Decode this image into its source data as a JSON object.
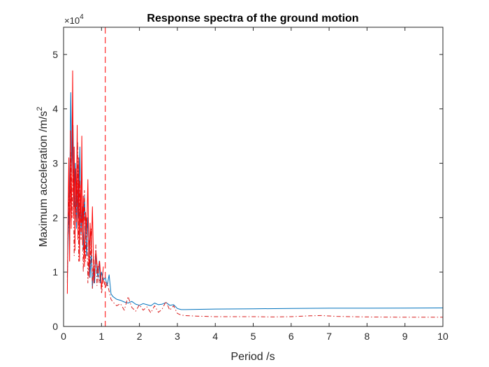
{
  "chart_data": {
    "type": "line",
    "title": "Response spectra of the ground motion",
    "xlabel": "Period /s",
    "ylabel": "Maximum acceleration /m/s",
    "ylabel_superscript": "2",
    "y_exponent_prefix": "×10",
    "y_exponent_power": "4",
    "xlim": [
      0,
      10
    ],
    "ylim": [
      0,
      55000
    ],
    "xticks": [
      0,
      1,
      2,
      3,
      4,
      5,
      6,
      7,
      8,
      9,
      10
    ],
    "yticks": [
      0,
      10000,
      20000,
      30000,
      40000,
      50000
    ],
    "ytick_labels": [
      "0",
      "1",
      "2",
      "3",
      "4",
      "5"
    ],
    "grid": false,
    "box": true,
    "vertical_marker": {
      "x": 1.1,
      "style": "dashed",
      "color": "#ff0000"
    },
    "series": [
      {
        "style": "solid",
        "color": "#0072bd",
        "x": [
          0.1,
          0.13,
          0.16,
          0.19,
          0.22,
          0.25,
          0.28,
          0.31,
          0.34,
          0.37,
          0.4,
          0.43,
          0.46,
          0.49,
          0.52,
          0.55,
          0.58,
          0.61,
          0.64,
          0.67,
          0.7,
          0.73,
          0.76,
          0.79,
          0.82,
          0.85,
          0.88,
          0.91,
          0.94,
          0.97,
          1.0,
          1.05,
          1.1,
          1.15,
          1.2,
          1.25,
          1.3,
          1.4,
          1.5,
          1.6,
          1.7,
          1.8,
          1.9,
          2.0,
          2.1,
          2.2,
          2.3,
          2.4,
          2.5,
          2.6,
          2.7,
          2.8,
          2.9,
          3.0,
          3.1,
          3.2,
          4.0,
          5.0,
          6.0,
          7.0,
          8.0,
          9.0,
          10.0
        ],
        "y": [
          9000,
          19000,
          24000,
          43000,
          28000,
          37000,
          22000,
          30000,
          18000,
          26000,
          20000,
          33000,
          17000,
          22000,
          14000,
          24000,
          18000,
          13000,
          20000,
          15000,
          9000,
          14000,
          7000,
          11000,
          8000,
          14000,
          10000,
          9000,
          12000,
          8000,
          10000,
          8500,
          9000,
          7500,
          9500,
          6000,
          5500,
          5000,
          4800,
          4500,
          4300,
          4600,
          4100,
          3900,
          4200,
          4000,
          3800,
          4300,
          4000,
          4100,
          4400,
          3900,
          4000,
          3300,
          3100,
          3100,
          3200,
          3250,
          3300,
          3350,
          3350,
          3380,
          3400
        ]
      },
      {
        "style": "solid",
        "color": "#ff0000",
        "x": [
          0.1,
          0.12,
          0.14,
          0.16,
          0.18,
          0.2,
          0.22,
          0.24,
          0.26,
          0.28,
          0.3,
          0.32,
          0.34,
          0.36,
          0.38,
          0.4,
          0.42,
          0.44,
          0.46,
          0.48,
          0.5,
          0.52,
          0.55,
          0.58,
          0.61,
          0.64,
          0.67,
          0.7,
          0.73,
          0.76,
          0.8,
          0.85,
          0.9,
          0.95,
          1.0,
          1.05
        ],
        "y": [
          6000,
          22000,
          31000,
          12000,
          36000,
          18000,
          28000,
          47000,
          20000,
          33000,
          14000,
          29000,
          22000,
          37000,
          16000,
          31000,
          12000,
          26000,
          19000,
          35000,
          15000,
          24000,
          11000,
          21000,
          17000,
          27000,
          9000,
          19000,
          13000,
          22000,
          8000,
          14000,
          10000,
          12000,
          7000,
          11000
        ]
      },
      {
        "style": "dashdot",
        "color": "#d81b1b",
        "x": [
          0.1,
          0.13,
          0.16,
          0.19,
          0.22,
          0.25,
          0.28,
          0.31,
          0.34,
          0.37,
          0.4,
          0.43,
          0.46,
          0.49,
          0.52,
          0.55,
          0.58,
          0.61,
          0.64,
          0.67,
          0.7,
          0.73,
          0.76,
          0.79,
          0.82,
          0.85,
          0.88,
          0.91,
          0.94,
          0.97,
          1.0,
          1.05,
          1.1,
          1.15,
          1.2,
          1.25,
          1.3,
          1.4,
          1.5,
          1.6,
          1.7,
          1.8,
          1.9,
          2.0,
          2.1,
          2.2,
          2.3,
          2.4,
          2.5,
          2.6,
          2.7,
          2.8,
          2.9,
          3.0,
          3.1,
          3.2,
          3.5,
          4.0,
          5.0,
          5.5,
          6.0,
          6.5,
          6.8,
          7.2,
          8.0,
          9.0,
          10.0
        ],
        "y": [
          8000,
          25000,
          15000,
          32000,
          20000,
          29000,
          13000,
          24000,
          19000,
          34000,
          12000,
          27000,
          16000,
          22000,
          10000,
          25000,
          12000,
          20000,
          8000,
          16000,
          11000,
          18000,
          7000,
          13000,
          9000,
          15000,
          7500,
          11000,
          8000,
          10000,
          6000,
          9000,
          7000,
          8000,
          6500,
          5000,
          4500,
          3800,
          4200,
          3000,
          5500,
          3500,
          2800,
          4000,
          3000,
          3600,
          2500,
          3800,
          2600,
          3200,
          4600,
          3000,
          3800,
          2400,
          2100,
          2000,
          1900,
          1800,
          1800,
          1750,
          1800,
          1950,
          2000,
          1850,
          1750,
          1700,
          1700
        ]
      }
    ]
  }
}
